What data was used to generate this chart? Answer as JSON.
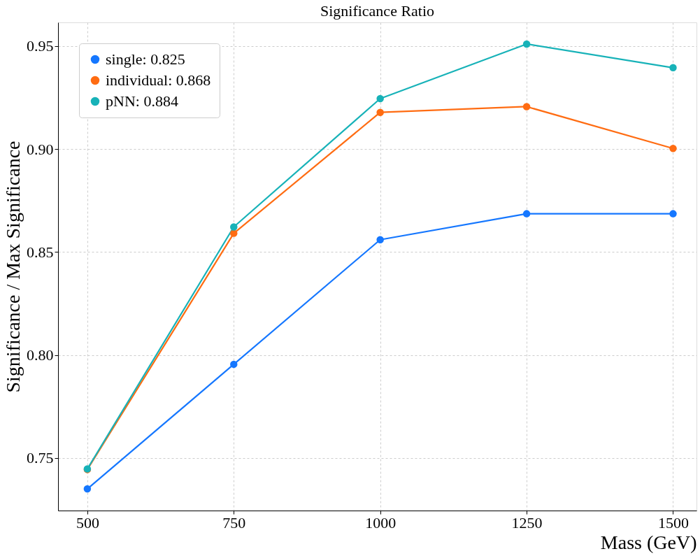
{
  "chart_data": {
    "type": "line",
    "title": "Significance Ratio",
    "xlabel": "Mass (GeV)",
    "ylabel": "Significance / Max Significance",
    "x": [
      500,
      750,
      1000,
      1250,
      1500
    ],
    "series": [
      {
        "name": "single: 0.825",
        "color": "#1577ff",
        "values": [
          0.735,
          0.7955,
          0.856,
          0.8686,
          0.8686
        ]
      },
      {
        "name": "individual: 0.868",
        "color": "#ff6c12",
        "values": [
          0.7444,
          0.8591,
          0.9178,
          0.9206,
          0.9003
        ]
      },
      {
        "name": "pNN: 0.884",
        "color": "#17b2b8",
        "values": [
          0.7447,
          0.8622,
          0.9245,
          0.951,
          0.9395
        ]
      }
    ],
    "xlim": [
      450,
      1540
    ],
    "ylim": [
      0.7245,
      0.9615
    ],
    "xticks": [
      500,
      750,
      1000,
      1250,
      1500
    ],
    "yticks": [
      0.75,
      {
        "value": 0.8,
        "label": "0.80"
      },
      0.85,
      {
        "value": 0.9,
        "label": "0.90"
      },
      0.95
    ],
    "grid": true,
    "legend": "top left",
    "marker": "circle",
    "line_style": "solid"
  }
}
